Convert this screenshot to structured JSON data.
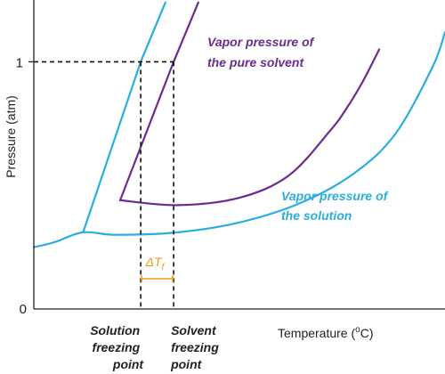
{
  "chart_data": {
    "type": "line",
    "title": "",
    "xlabel": "Temperature (",
    "xlabel_sup": "o",
    "xlabel_end": "C)",
    "ylabel": "Pressure (atm)",
    "yticks": [
      "0",
      "1"
    ],
    "ylim": [
      0,
      1.25
    ],
    "xlim": [
      0,
      1
    ],
    "grid": false,
    "series": [
      {
        "name": "Vapor pressure of the pure solvent",
        "label_lines": [
          "Vapor pressure of",
          "the pure solvent"
        ],
        "color": "#6a2c91",
        "values": [
          [
            0.21,
            0.44
          ],
          [
            0.35,
            0.42
          ],
          [
            0.5,
            0.45
          ],
          [
            0.62,
            0.54
          ],
          [
            0.72,
            0.72
          ],
          [
            0.76,
            0.81
          ],
          [
            0.8,
            0.92
          ],
          [
            0.84,
            1.05
          ]
        ]
      },
      {
        "name": "Vapor pressure of the solution",
        "label_lines": [
          "Vapor pressure of",
          "the solution"
        ],
        "color": "#2aaee0",
        "values": [
          [
            0.0,
            0.25
          ],
          [
            0.05,
            0.27
          ],
          [
            0.12,
            0.31
          ],
          [
            0.2,
            0.3
          ],
          [
            0.35,
            0.31
          ],
          [
            0.5,
            0.35
          ],
          [
            0.65,
            0.43
          ],
          [
            0.78,
            0.55
          ],
          [
            0.88,
            0.71
          ],
          [
            0.97,
            0.98
          ],
          [
            1.0,
            1.12
          ]
        ]
      },
      {
        "name": "pure solvent melting line",
        "color": "#6a2c91",
        "values": [
          [
            0.21,
            0.44
          ],
          [
            0.34,
            1.0
          ],
          [
            0.4,
            1.24
          ]
        ]
      },
      {
        "name": "solution melting line",
        "color": "#2aaee0",
        "values": [
          [
            0.12,
            0.31
          ],
          [
            0.26,
            1.0
          ],
          [
            0.32,
            1.24
          ]
        ]
      }
    ],
    "annotations": {
      "solution_freezing_point": {
        "x": 0.26,
        "lines": [
          "Solution",
          "freezing",
          "point"
        ]
      },
      "solvent_freezing_point": {
        "x": 0.34,
        "lines": [
          "Solvent",
          "freezing",
          "point"
        ]
      },
      "delta_tf": {
        "symbol": "ΔT",
        "subscript": "f",
        "color": "#f39c1f"
      },
      "reference_pressure": 1.0
    }
  }
}
